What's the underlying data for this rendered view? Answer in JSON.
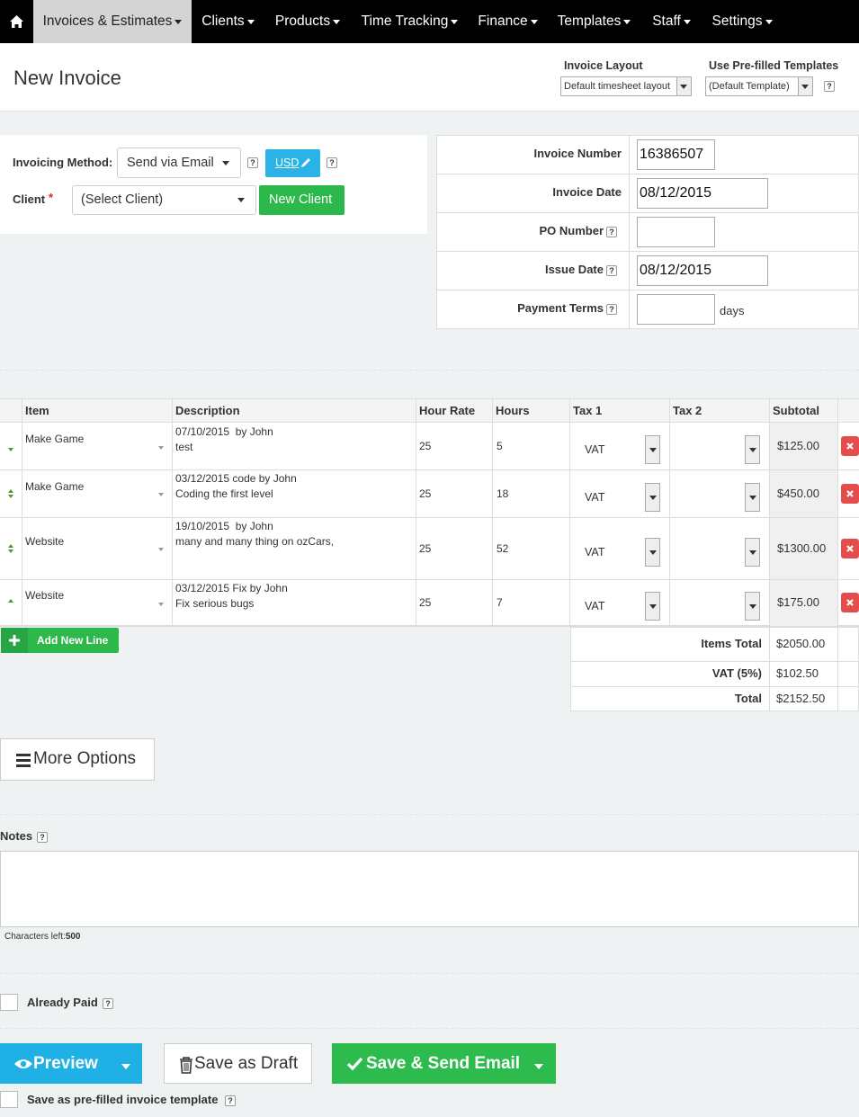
{
  "nav": {
    "items": [
      "Invoices & Estimates",
      "Clients",
      "Products",
      "Time Tracking",
      "Finance",
      "Templates",
      "Staff",
      "Settings"
    ]
  },
  "header": {
    "title": "New Invoice",
    "layout_label": "Invoice Layout",
    "layout_value": "Default timesheet layout",
    "template_label": "Use Pre-filled Templates",
    "template_value": "(Default Template)"
  },
  "help": "?",
  "invoicing": {
    "method_label": "Invoicing Method:",
    "method_value": "Send via Email",
    "currency": "USD",
    "client_label": "Client",
    "required_mark": "*",
    "client_value": "(Select Client)",
    "new_client": "New Client"
  },
  "details": [
    {
      "label": "Invoice Number",
      "value": "16386507"
    },
    {
      "label": "Invoice Date",
      "value": "08/12/2015"
    },
    {
      "label": "PO Number"
    },
    {
      "label": "Issue Date",
      "value": "08/12/2015"
    },
    {
      "label": "Payment Terms",
      "suffix": "days"
    }
  ],
  "table": {
    "columns": [
      "Item",
      "Description",
      "Hour Rate",
      "Hours",
      "Tax 1",
      "Tax 2",
      "Subtotal"
    ],
    "rows": [
      {
        "item": "Make Game",
        "description": [
          "07/10/2015  by John",
          "test"
        ],
        "rate": 25,
        "hours": 5,
        "tax1": "VAT",
        "subtotal": "$125.00"
      },
      {
        "item": "Make Game",
        "description": [
          "03/12/2015 code by John",
          "Coding the first level"
        ],
        "rate": 25,
        "hours": 18,
        "tax1": "VAT",
        "subtotal": "$450.00"
      },
      {
        "item": "Website",
        "description": [
          "19/10/2015  by John",
          "many and many thing on ozCars,"
        ],
        "rate": 25,
        "hours": 52,
        "tax1": "VAT",
        "subtotal": "$1300.00"
      },
      {
        "item": "Website",
        "description": [
          "03/12/2015 Fix by John",
          "Fix serious bugs"
        ],
        "rate": 25,
        "hours": 7,
        "tax1": "VAT",
        "subtotal": "$175.00"
      }
    ]
  },
  "add_line": "Add New Line",
  "totals": [
    {
      "label": "Items Total",
      "value": "$2050.00"
    },
    {
      "label": "VAT (5%)",
      "value": "$102.50"
    },
    {
      "label": "Total",
      "value": "$2152.50"
    }
  ],
  "more_options": "More Options",
  "notes": {
    "label": "Notes",
    "chars_label": "Characters left:",
    "chars_left": 500
  },
  "already_paid": "Already Paid",
  "buttons": {
    "preview": "Preview",
    "draft": "Save as Draft",
    "send": "Save & Send Email"
  },
  "save_template": "Save as pre-filled invoice template"
}
